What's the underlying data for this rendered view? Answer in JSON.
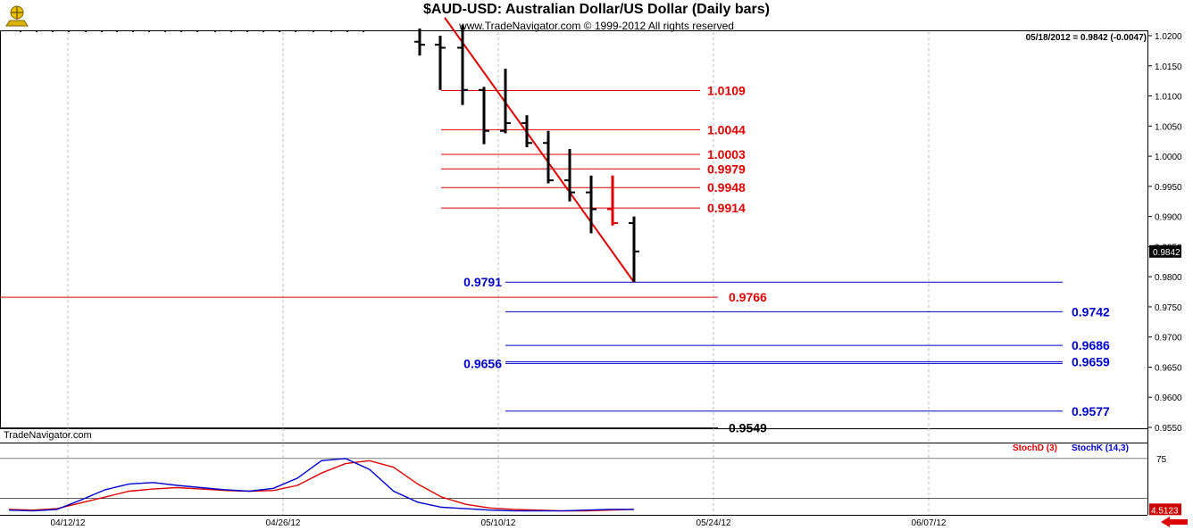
{
  "header": {
    "title": "$AUD-USD:  Australian Dollar/US Dollar  (Daily bars)",
    "copyright": "www.TradeNavigator.com © 1999-2012 All rights reserved",
    "quote": "05/18/2012 = 0.9842 (-0.0047)",
    "watermark": "TradeNavigator.com"
  },
  "colors": {
    "red": "#dd0000",
    "blue": "#0000cc",
    "black": "#000000",
    "price_bg": "#000000",
    "stoch_bg": "#cc0000"
  },
  "chart_data": [
    {
      "type": "ohlc",
      "title": "$AUD-USD:  Australian Dollar/US Dollar  (Daily bars)",
      "ylim": [
        0.9535,
        1.0225
      ],
      "yticks": [
        "1.0200",
        "1.0150",
        "1.0100",
        "1.0050",
        "1.0000",
        "0.9950",
        "0.9900",
        "0.9850",
        "0.9800",
        "0.9750",
        "0.9700",
        "0.9650",
        "0.9600",
        "0.9550"
      ],
      "xticks": [
        "04/12/12",
        "04/26/12",
        "05/10/12",
        "05/24/12",
        "06/07/12"
      ],
      "last_price_label": "0.9842",
      "bars": [
        {
          "h": 1.0212,
          "l": 1.0167,
          "o": 1.019,
          "c": 1.0185,
          "color": "black"
        },
        {
          "h": 1.02,
          "l": 1.011,
          "o": 1.0185,
          "c": 1.018,
          "color": "black"
        },
        {
          "h": 1.0218,
          "l": 1.0085,
          "o": 1.018,
          "c": 1.011,
          "color": "black"
        },
        {
          "h": 1.0115,
          "l": 1.002,
          "o": 1.011,
          "c": 1.0042,
          "color": "black"
        },
        {
          "h": 1.0145,
          "l": 1.0038,
          "o": 1.0042,
          "c": 1.0055,
          "color": "black"
        },
        {
          "h": 1.0068,
          "l": 1.0015,
          "o": 1.0055,
          "c": 1.0022,
          "color": "black"
        },
        {
          "h": 1.0042,
          "l": 0.9955,
          "o": 1.0022,
          "c": 0.996,
          "color": "black"
        },
        {
          "h": 1.0012,
          "l": 0.9925,
          "o": 0.996,
          "c": 0.994,
          "color": "black"
        },
        {
          "h": 0.9968,
          "l": 0.9872,
          "o": 0.994,
          "c": 0.9912,
          "color": "black"
        },
        {
          "h": 0.9968,
          "l": 0.9885,
          "o": 0.9912,
          "c": 0.9889,
          "color": "red"
        },
        {
          "h": 0.99,
          "l": 0.9791,
          "o": 0.9889,
          "c": 0.9842,
          "color": "black"
        }
      ],
      "trendline": {
        "from": 1.023,
        "to": 0.9791,
        "color": "red"
      },
      "levels": [
        {
          "value": 1.0109,
          "label": "1.0109",
          "color": "red",
          "label_side": "right"
        },
        {
          "value": 1.0044,
          "label": "1.0044",
          "color": "red",
          "label_side": "right"
        },
        {
          "value": 1.0003,
          "label": "1.0003",
          "color": "red",
          "label_side": "right"
        },
        {
          "value": 0.9979,
          "label": "0.9979",
          "color": "red",
          "label_side": "right"
        },
        {
          "value": 0.9948,
          "label": "0.9948",
          "color": "red",
          "label_side": "right"
        },
        {
          "value": 0.9914,
          "label": "0.9914",
          "color": "red",
          "label_side": "right"
        },
        {
          "value": 0.9791,
          "label": "0.9791",
          "color": "blue",
          "label_side": "left"
        },
        {
          "value": 0.9766,
          "label": "0.9766",
          "color": "red",
          "label_side": "right"
        },
        {
          "value": 0.9742,
          "label": "0.9742",
          "color": "blue",
          "label_side": "right"
        },
        {
          "value": 0.9686,
          "label": "0.9686",
          "color": "blue",
          "label_side": "right"
        },
        {
          "value": 0.9659,
          "label": "0.9659",
          "color": "blue",
          "label_side": "right"
        },
        {
          "value": 0.9656,
          "label": "0.9656",
          "color": "blue",
          "label_side": "left"
        },
        {
          "value": 0.9577,
          "label": "0.9577",
          "color": "blue",
          "label_side": "right"
        },
        {
          "value": 0.9549,
          "label": "0.9549",
          "color": "black",
          "label_side": "right"
        }
      ]
    },
    {
      "type": "line",
      "title": "StochD (3)  StochK (14,3)",
      "ylim": [
        0,
        100
      ],
      "reference_line": 75,
      "yticks": [
        "75"
      ],
      "last_value_label": "4.5123",
      "series": [
        {
          "name": "StochD (3)",
          "color": "red",
          "values": [
            5,
            4,
            6,
            14,
            22,
            30,
            33,
            35,
            33,
            31,
            30,
            31,
            38,
            55,
            68,
            72,
            63,
            40,
            22,
            12,
            7,
            5,
            4,
            3,
            3,
            4,
            5
          ]
        },
        {
          "name": "StochK (14,3)",
          "color": "blue",
          "values": [
            4,
            3,
            5,
            18,
            32,
            40,
            42,
            38,
            35,
            32,
            30,
            34,
            48,
            72,
            75,
            60,
            30,
            15,
            8,
            6,
            4,
            3,
            3,
            3,
            4,
            5,
            5
          ]
        }
      ]
    }
  ]
}
